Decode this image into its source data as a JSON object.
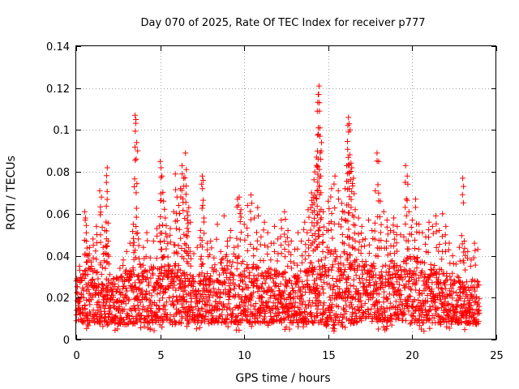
{
  "chart_data": {
    "type": "scatter",
    "title": "Day 070 of 2025, Rate Of TEC Index for receiver p777",
    "xlabel": "GPS time / hours",
    "ylabel": "ROTI / TECUs",
    "xlim": [
      0,
      25
    ],
    "ylim": [
      0,
      0.14
    ],
    "xticks": [
      0,
      5,
      10,
      15,
      20,
      25
    ],
    "xtick_labels": [
      "0",
      "5",
      "10",
      "15",
      "20",
      "25"
    ],
    "yticks": [
      0,
      0.02,
      0.04,
      0.06,
      0.08,
      0.1,
      0.12,
      0.14
    ],
    "ytick_labels": [
      "0",
      "0.02",
      "0.04",
      "0.06",
      "0.08",
      "0.1",
      "0.12",
      "0.14"
    ],
    "grid": true,
    "marker": "+",
    "series": [
      {
        "name": "ROTI",
        "color": "#ff0000",
        "points": [
          [
            0.0,
            0.028
          ],
          [
            0.1,
            0.018
          ],
          [
            0.2,
            0.035
          ],
          [
            0.3,
            0.022
          ],
          [
            0.4,
            0.031
          ],
          [
            0.5,
            0.061
          ],
          [
            0.55,
            0.058
          ],
          [
            0.6,
            0.047
          ],
          [
            0.7,
            0.04
          ],
          [
            0.8,
            0.044
          ],
          [
            0.9,
            0.037
          ],
          [
            1.0,
            0.048
          ],
          [
            1.1,
            0.033
          ],
          [
            1.2,
            0.054
          ],
          [
            1.3,
            0.029
          ],
          [
            1.4,
            0.071
          ],
          [
            1.5,
            0.068
          ],
          [
            1.6,
            0.044
          ],
          [
            1.7,
            0.052
          ],
          [
            1.8,
            0.075
          ],
          [
            1.85,
            0.082
          ],
          [
            1.9,
            0.047
          ],
          [
            2.0,
            0.031
          ],
          [
            2.2,
            0.024
          ],
          [
            2.4,
            0.029
          ],
          [
            2.6,
            0.034
          ],
          [
            2.8,
            0.038
          ],
          [
            3.0,
            0.042
          ],
          [
            3.2,
            0.046
          ],
          [
            3.4,
            0.055
          ],
          [
            3.5,
            0.107
          ],
          [
            3.55,
            0.105
          ],
          [
            3.6,
            0.094
          ],
          [
            3.7,
            0.048
          ],
          [
            3.8,
            0.036
          ],
          [
            4.0,
            0.044
          ],
          [
            4.2,
            0.051
          ],
          [
            4.4,
            0.039
          ],
          [
            4.6,
            0.047
          ],
          [
            4.8,
            0.053
          ],
          [
            5.0,
            0.085
          ],
          [
            5.05,
            0.082
          ],
          [
            5.1,
            0.078
          ],
          [
            5.2,
            0.066
          ],
          [
            5.3,
            0.058
          ],
          [
            5.4,
            0.049
          ],
          [
            5.6,
            0.053
          ],
          [
            5.8,
            0.061
          ],
          [
            5.9,
            0.079
          ],
          [
            6.0,
            0.068
          ],
          [
            6.1,
            0.064
          ],
          [
            6.2,
            0.072
          ],
          [
            6.3,
            0.083
          ],
          [
            6.4,
            0.077
          ],
          [
            6.5,
            0.089
          ],
          [
            6.6,
            0.061
          ],
          [
            6.7,
            0.063
          ],
          [
            6.8,
            0.056
          ],
          [
            7.0,
            0.041
          ],
          [
            7.2,
            0.044
          ],
          [
            7.4,
            0.052
          ],
          [
            7.5,
            0.078
          ],
          [
            7.55,
            0.076
          ],
          [
            7.6,
            0.058
          ],
          [
            7.8,
            0.046
          ],
          [
            8.0,
            0.047
          ],
          [
            8.2,
            0.039
          ],
          [
            8.4,
            0.055
          ],
          [
            8.6,
            0.042
          ],
          [
            8.8,
            0.059
          ],
          [
            9.0,
            0.047
          ],
          [
            9.2,
            0.052
          ],
          [
            9.4,
            0.044
          ],
          [
            9.6,
            0.067
          ],
          [
            9.7,
            0.068
          ],
          [
            9.8,
            0.062
          ],
          [
            10.0,
            0.055
          ],
          [
            10.2,
            0.064
          ],
          [
            10.4,
            0.069
          ],
          [
            10.6,
            0.058
          ],
          [
            10.8,
            0.063
          ],
          [
            11.0,
            0.049
          ],
          [
            11.2,
            0.056
          ],
          [
            11.4,
            0.051
          ],
          [
            11.6,
            0.046
          ],
          [
            11.8,
            0.054
          ],
          [
            12.0,
            0.048
          ],
          [
            12.2,
            0.057
          ],
          [
            12.4,
            0.061
          ],
          [
            12.6,
            0.052
          ],
          [
            12.8,
            0.047
          ],
          [
            13.0,
            0.043
          ],
          [
            13.2,
            0.051
          ],
          [
            13.4,
            0.047
          ],
          [
            13.6,
            0.056
          ],
          [
            13.8,
            0.062
          ],
          [
            14.0,
            0.07
          ],
          [
            14.1,
            0.068
          ],
          [
            14.2,
            0.08
          ],
          [
            14.3,
            0.087
          ],
          [
            14.35,
            0.109
          ],
          [
            14.4,
            0.117
          ],
          [
            14.45,
            0.121
          ],
          [
            14.5,
            0.101
          ],
          [
            14.6,
            0.094
          ],
          [
            14.7,
            0.061
          ],
          [
            14.9,
            0.052
          ],
          [
            15.0,
            0.066
          ],
          [
            15.2,
            0.072
          ],
          [
            15.4,
            0.078
          ],
          [
            15.6,
            0.071
          ],
          [
            15.8,
            0.065
          ],
          [
            16.0,
            0.072
          ],
          [
            16.1,
            0.083
          ],
          [
            16.2,
            0.106
          ],
          [
            16.25,
            0.103
          ],
          [
            16.3,
            0.1
          ],
          [
            16.4,
            0.082
          ],
          [
            16.5,
            0.077
          ],
          [
            16.6,
            0.062
          ],
          [
            16.8,
            0.058
          ],
          [
            17.0,
            0.054
          ],
          [
            17.2,
            0.048
          ],
          [
            17.4,
            0.057
          ],
          [
            17.6,
            0.052
          ],
          [
            17.8,
            0.071
          ],
          [
            17.9,
            0.089
          ],
          [
            18.0,
            0.085
          ],
          [
            18.1,
            0.066
          ],
          [
            18.3,
            0.061
          ],
          [
            18.5,
            0.057
          ],
          [
            18.7,
            0.052
          ],
          [
            18.9,
            0.058
          ],
          [
            19.1,
            0.054
          ],
          [
            19.3,
            0.05
          ],
          [
            19.5,
            0.049
          ],
          [
            19.6,
            0.083
          ],
          [
            19.7,
            0.078
          ],
          [
            19.8,
            0.061
          ],
          [
            20.0,
            0.057
          ],
          [
            20.2,
            0.067
          ],
          [
            20.4,
            0.055
          ],
          [
            20.6,
            0.051
          ],
          [
            20.8,
            0.049
          ],
          [
            21.0,
            0.056
          ],
          [
            21.2,
            0.054
          ],
          [
            21.4,
            0.059
          ],
          [
            21.6,
            0.052
          ],
          [
            21.8,
            0.06
          ],
          [
            22.0,
            0.054
          ],
          [
            22.2,
            0.046
          ],
          [
            22.4,
            0.04
          ],
          [
            22.6,
            0.036
          ],
          [
            22.8,
            0.044
          ],
          [
            23.0,
            0.077
          ],
          [
            23.1,
            0.047
          ],
          [
            23.3,
            0.042
          ],
          [
            23.5,
            0.038
          ],
          [
            23.7,
            0.046
          ],
          [
            23.9,
            0.043
          ]
        ],
        "band": {
          "hours": [
            0,
            1,
            2,
            3,
            4,
            5,
            6,
            7,
            8,
            9,
            10,
            11,
            12,
            13,
            14,
            15,
            16,
            17,
            18,
            19,
            20,
            21,
            22,
            23,
            24
          ],
          "low": [
            0.009,
            0.008,
            0.008,
            0.007,
            0.008,
            0.008,
            0.008,
            0.008,
            0.008,
            0.008,
            0.008,
            0.008,
            0.008,
            0.008,
            0.008,
            0.007,
            0.007,
            0.008,
            0.008,
            0.008,
            0.008,
            0.008,
            0.008,
            0.008,
            0.007
          ],
          "high": [
            0.03,
            0.036,
            0.028,
            0.034,
            0.036,
            0.035,
            0.038,
            0.03,
            0.034,
            0.042,
            0.04,
            0.034,
            0.034,
            0.03,
            0.038,
            0.045,
            0.042,
            0.038,
            0.036,
            0.038,
            0.04,
            0.038,
            0.034,
            0.03,
            0.028
          ],
          "minimum": 0.004
        }
      }
    ]
  }
}
